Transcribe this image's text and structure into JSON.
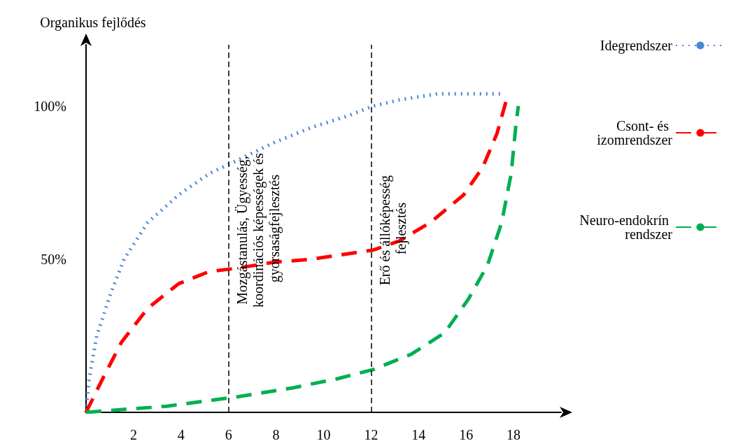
{
  "chart_data": {
    "type": "line",
    "ylabel": "Organikus fejlődés",
    "xlim": [
      0,
      20
    ],
    "xticks": [
      2,
      4,
      6,
      8,
      10,
      12,
      14,
      16,
      18
    ],
    "ylim": [
      0,
      120
    ],
    "yticks": [
      {
        "value": 50,
        "label": "50%"
      },
      {
        "value": 100,
        "label": "100%"
      }
    ],
    "grid": false,
    "legend": "right",
    "marker": "none",
    "series": [
      {
        "name": "Idegrendszer",
        "color": "#4a86d4",
        "line_style": "dotted",
        "x": [
          0,
          0.13,
          0.45,
          1,
          1.6,
          2.6,
          3.9,
          5.2,
          6.3,
          7.9,
          9.5,
          11.1,
          12.1,
          13.2,
          14.8,
          16.4,
          17.5
        ],
        "values": [
          0,
          11,
          25,
          38,
          50,
          62,
          71,
          78,
          82,
          88,
          93,
          97,
          100,
          102,
          104,
          104,
          104
        ]
      },
      {
        "name": "Csont- és izomrendszer",
        "color": "#ff0000",
        "line_style": "dashed",
        "x": [
          0,
          0.7,
          1.5,
          2.6,
          3.9,
          5.2,
          6.3,
          7.9,
          9.5,
          12.1,
          13.2,
          14.5,
          15.9,
          16.7,
          17.3,
          17.7
        ],
        "values": [
          0,
          11,
          23,
          34,
          42,
          46,
          47,
          49,
          50,
          53,
          56,
          62,
          71,
          80,
          91,
          102
        ]
      },
      {
        "name": "Neuro-endokrín rendszer",
        "color": "#00b050",
        "line_style": "dashed",
        "x": [
          0,
          3.4,
          6.3,
          8.7,
          10.6,
          12.1,
          13.7,
          15.1,
          16.1,
          16.9,
          17.5,
          17.9,
          18.1,
          18.2
        ],
        "values": [
          0,
          2,
          5,
          8,
          11,
          14,
          19,
          26,
          37,
          48,
          62,
          78,
          94,
          100
        ]
      }
    ],
    "ref_lines": [
      {
        "axis": "x",
        "value": 6,
        "label": "Mozgástanulás, Ügyesség, koordinációs képességek és gyorsaságfejlesztés",
        "color": "#000000",
        "line_style": "dashed"
      },
      {
        "axis": "x",
        "value": 12,
        "label": "Erő és állóképesség fejlesztés",
        "color": "#000000",
        "line_style": "dashed"
      }
    ]
  }
}
